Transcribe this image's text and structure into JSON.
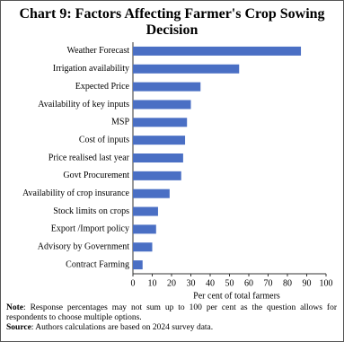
{
  "chart_data": {
    "type": "bar",
    "orientation": "horizontal",
    "title": "Chart 9: Factors Affecting Farmer's Crop Sowing Decision",
    "categories": [
      "Weather Forecast",
      "Irrigation availability",
      "Expected Price",
      "Availability of key inputs",
      "MSP",
      "Cost of inputs",
      "Price realised last year",
      "Govt Procurement",
      "Availability of crop insurance",
      "Stock limits on crops",
      "Export /Import policy",
      "Advisory by Government",
      "Contract Farming"
    ],
    "values": [
      87,
      55,
      35,
      30,
      28,
      27,
      26,
      25,
      19,
      13,
      12,
      10,
      5
    ],
    "color": "#4a6fc4",
    "xlim": [
      0,
      100
    ],
    "xticks": [
      0,
      10,
      20,
      30,
      40,
      50,
      60,
      70,
      80,
      90,
      100
    ],
    "x_label": "Per cent of total farmers",
    "grid": false
  },
  "notes": {
    "note_label": "Note",
    "note": ": Response percentages may not sum up to 100 per cent as the question allows for respondents to choose multiple options.",
    "source_label": "Source",
    "source": ": Authors calculations are based on 2024 survey data."
  }
}
